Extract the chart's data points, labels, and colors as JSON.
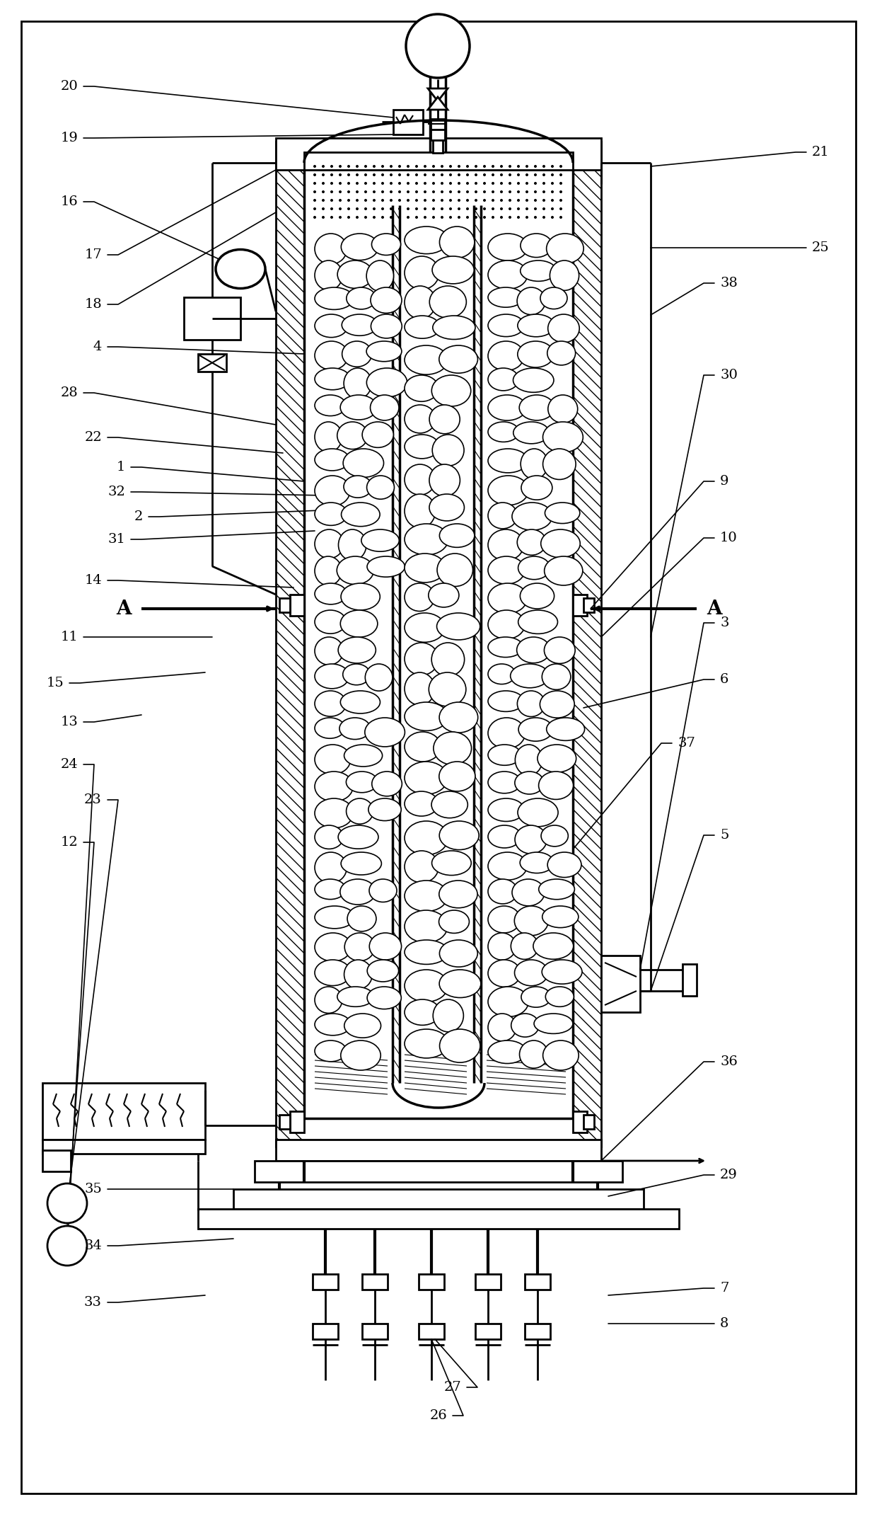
{
  "bg_color": "#ffffff",
  "line_color": "#000000",
  "figsize": [
    12.4,
    21.39
  ],
  "dpi": 100,
  "label_fontsize": 14,
  "label_font": "DejaVu Serif"
}
